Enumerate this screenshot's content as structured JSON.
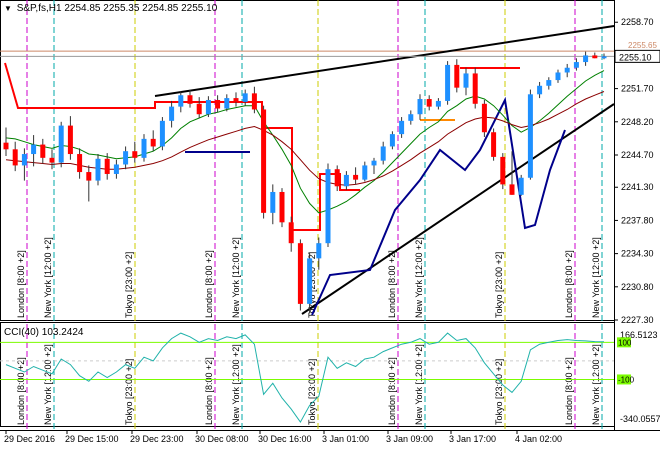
{
  "window": {
    "symbol_label": "S&P,fs,H1",
    "ohlc_label": "2254.85 2255.35 2254.85 2255.10",
    "collapse_icon": "triangle-down-icon"
  },
  "indicator": {
    "label": "CCI(40) 103.2424"
  },
  "price_axis": {
    "ticks": [
      "2258.70",
      "2255.10",
      "2251.70",
      "2248.20",
      "2244.70",
      "2241.30",
      "2237.80",
      "2234.30",
      "2230.80",
      "2227.30"
    ],
    "current_price": "2255.10",
    "hline_label": "2255.65"
  },
  "cci_axis": {
    "ticks": [
      "166.5123",
      "100",
      "-100",
      "-340.0557"
    ]
  },
  "time_axis": {
    "labels": [
      "29 Dec 2016",
      "29 Dec 15:00",
      "29 Dec 23:00",
      "30 Dec 08:00",
      "30 Dec 16:00",
      "3 Jan 01:00",
      "3 Jan 09:00",
      "3 Jan 17:00",
      "4 Jan 02:00"
    ]
  },
  "session_labels": [
    "London [8:00 +2]",
    "New York [12:00 +2]",
    "Tokyo [23:00 +2]",
    "London [8:00 +2]",
    "New York [12:00 +2]",
    "Tokyo [23:00 +2]",
    "London [8:00 +2]",
    "New York [12:00 +2]",
    "Tokyo [23:00 +2]",
    "London [8:00 +2]",
    "New York [12:00 +2]"
  ],
  "colors": {
    "bull": "#1e90ff",
    "bear": "#ff0000",
    "ma_fast": "#008000",
    "ma_slow": "#8b0000",
    "trend": "#000000",
    "navy": "#00008b",
    "cci": "#20b2aa",
    "level": "#7cfc00"
  },
  "chart_data": {
    "type": "candlestick",
    "symbol": "S&P,fs,H1",
    "indicator": "CCI(40)",
    "candles": [
      [
        2246.0,
        2247.6,
        2244.6,
        2245.3
      ],
      [
        2245.3,
        2246.1,
        2243.0,
        2243.6
      ],
      [
        2243.6,
        2245.4,
        2242.0,
        2244.8
      ],
      [
        2244.8,
        2246.8,
        2243.5,
        2245.8
      ],
      [
        2245.8,
        2246.4,
        2243.8,
        2244.4
      ],
      [
        2244.4,
        2245.3,
        2243.2,
        2243.9
      ],
      [
        2243.9,
        2248.2,
        2243.4,
        2247.8
      ],
      [
        2247.8,
        2248.8,
        2244.2,
        2244.8
      ],
      [
        2244.8,
        2245.4,
        2242.2,
        2242.9
      ],
      [
        2242.9,
        2243.6,
        2239.8,
        2242.0
      ],
      [
        2242.0,
        2244.8,
        2241.5,
        2244.3
      ],
      [
        2244.3,
        2244.9,
        2242.1,
        2242.7
      ],
      [
        2242.7,
        2244.2,
        2242.2,
        2243.7
      ],
      [
        2243.7,
        2245.6,
        2243.2,
        2245.1
      ],
      [
        2245.1,
        2246.1,
        2243.9,
        2244.4
      ],
      [
        2244.4,
        2246.9,
        2244.0,
        2246.4
      ],
      [
        2246.4,
        2247.3,
        2245.1,
        2245.6
      ],
      [
        2245.6,
        2248.7,
        2245.2,
        2248.3
      ],
      [
        2248.3,
        2250.4,
        2247.6,
        2249.8
      ],
      [
        2249.8,
        2251.4,
        2249.2,
        2251.0
      ],
      [
        2251.0,
        2251.6,
        2249.7,
        2250.1
      ],
      [
        2250.1,
        2250.8,
        2248.6,
        2249.0
      ],
      [
        2249.0,
        2250.9,
        2248.7,
        2250.5
      ],
      [
        2250.5,
        2251.0,
        2249.2,
        2249.6
      ],
      [
        2249.6,
        2251.1,
        2249.3,
        2250.7
      ],
      [
        2250.7,
        2251.3,
        2249.8,
        2250.3
      ],
      [
        2250.3,
        2251.6,
        2249.9,
        2251.2
      ],
      [
        2251.2,
        2251.9,
        2249.1,
        2249.5
      ],
      [
        2249.5,
        2249.9,
        2238.0,
        2238.6
      ],
      [
        2238.6,
        2241.6,
        2237.4,
        2240.8
      ],
      [
        2240.8,
        2241.2,
        2237.1,
        2237.6
      ],
      [
        2237.6,
        2238.2,
        2234.5,
        2235.4
      ],
      [
        2235.4,
        2235.8,
        2228.3,
        2229.0
      ],
      [
        2229.0,
        2234.4,
        2228.0,
        2233.8
      ],
      [
        2233.8,
        2236.0,
        2232.6,
        2235.4
      ],
      [
        2235.4,
        2243.8,
        2235.0,
        2243.2
      ],
      [
        2243.2,
        2243.6,
        2240.9,
        2241.4
      ],
      [
        2241.4,
        2243.0,
        2241.0,
        2242.6
      ],
      [
        2242.6,
        2243.4,
        2241.6,
        2242.1
      ],
      [
        2242.1,
        2244.0,
        2241.9,
        2243.6
      ],
      [
        2243.6,
        2244.4,
        2242.7,
        2244.1
      ],
      [
        2244.1,
        2246.1,
        2243.7,
        2245.6
      ],
      [
        2245.6,
        2247.2,
        2245.3,
        2246.9
      ],
      [
        2246.9,
        2248.7,
        2246.5,
        2248.3
      ],
      [
        2248.3,
        2249.4,
        2247.9,
        2249.0
      ],
      [
        2249.0,
        2251.1,
        2248.4,
        2250.6
      ],
      [
        2250.6,
        2251.0,
        2249.4,
        2249.8
      ],
      [
        2249.8,
        2250.7,
        2249.5,
        2250.4
      ],
      [
        2250.4,
        2254.6,
        2250.0,
        2254.2
      ],
      [
        2254.2,
        2254.8,
        2251.3,
        2251.8
      ],
      [
        2251.8,
        2253.9,
        2251.0,
        2253.3
      ],
      [
        2253.3,
        2253.9,
        2249.6,
        2250.1
      ],
      [
        2250.1,
        2250.5,
        2246.6,
        2247.1
      ],
      [
        2247.1,
        2247.5,
        2244.1,
        2244.5
      ],
      [
        2244.5,
        2244.9,
        2241.1,
        2241.6
      ],
      [
        2241.6,
        2245.1,
        2240.5,
        2240.5
      ],
      [
        2240.5,
        2242.6,
        2240.4,
        2242.3
      ],
      [
        2242.3,
        2251.6,
        2242.1,
        2251.1
      ],
      [
        2251.1,
        2252.4,
        2250.7,
        2252.0
      ],
      [
        2252.0,
        2252.9,
        2251.6,
        2252.6
      ],
      [
        2252.6,
        2253.7,
        2252.3,
        2253.4
      ],
      [
        2253.4,
        2254.3,
        2252.9,
        2253.9
      ],
      [
        2253.9,
        2254.9,
        2253.6,
        2254.5
      ],
      [
        2254.5,
        2255.6,
        2254.1,
        2255.2
      ],
      [
        2255.2,
        2255.5,
        2254.9,
        2254.9
      ],
      [
        2254.9,
        2255.4,
        2254.8,
        2255.1
      ]
    ],
    "ma_fast": [
      2246.5,
      2246.4,
      2246.1,
      2245.8,
      2245.6,
      2245.4,
      2245.7,
      2245.6,
      2245.3,
      2244.8,
      2244.7,
      2244.5,
      2244.3,
      2244.4,
      2244.5,
      2244.8,
      2245.1,
      2245.7,
      2246.5,
      2247.5,
      2248.2,
      2248.6,
      2249.0,
      2249.2,
      2249.5,
      2249.7,
      2249.9,
      2249.9,
      2248.2,
      2246.8,
      2245.3,
      2243.6,
      2241.2,
      2239.6,
      2238.6,
      2238.9,
      2239.3,
      2239.8,
      2240.5,
      2241.3,
      2242.0,
      2242.9,
      2243.9,
      2244.9,
      2245.9,
      2246.9,
      2247.6,
      2248.2,
      2249.3,
      2249.9,
      2250.6,
      2250.9,
      2250.6,
      2249.9,
      2248.9,
      2247.8,
      2247.1,
      2247.6,
      2248.3,
      2249.1,
      2250.0,
      2250.9,
      2251.7,
      2252.5,
      2253.1,
      2253.6
    ],
    "ma_slow": [
      2244.2,
      2244.1,
      2244.0,
      2243.9,
      2243.8,
      2243.7,
      2243.8,
      2243.8,
      2243.6,
      2243.4,
      2243.3,
      2243.2,
      2243.2,
      2243.3,
      2243.4,
      2243.6,
      2243.8,
      2244.1,
      2244.5,
      2245.0,
      2245.5,
      2245.9,
      2246.3,
      2246.6,
      2246.9,
      2247.2,
      2247.5,
      2247.7,
      2247.3,
      2246.8,
      2246.1,
      2245.3,
      2244.2,
      2243.1,
      2242.2,
      2241.8,
      2241.6,
      2241.5,
      2241.6,
      2241.8,
      2242.1,
      2242.5,
      2243.0,
      2243.6,
      2244.2,
      2244.9,
      2245.5,
      2246.1,
      2246.9,
      2247.5,
      2248.1,
      2248.5,
      2248.7,
      2248.6,
      2248.3,
      2247.9,
      2247.6,
      2247.8,
      2248.1,
      2248.5,
      2249.0,
      2249.5,
      2250.1,
      2250.6,
      2251.0,
      2251.4
    ],
    "cci": [
      -20,
      -40,
      -60,
      -30,
      -50,
      -70,
      10,
      -20,
      -80,
      -110,
      -60,
      -90,
      -60,
      -20,
      -40,
      20,
      0,
      70,
      120,
      150,
      130,
      100,
      120,
      110,
      130,
      120,
      140,
      90,
      -180,
      -120,
      -200,
      -260,
      -330,
      -240,
      -190,
      20,
      -40,
      -10,
      -30,
      10,
      20,
      50,
      70,
      90,
      100,
      120,
      90,
      100,
      150,
      110,
      120,
      70,
      -10,
      -70,
      -130,
      -170,
      -110,
      60,
      90,
      100,
      110,
      115,
      110,
      108,
      104,
      103.2424
    ],
    "ylim": [
      2227.3,
      2260.2
    ],
    "cci_ylim": [
      -340.0557,
      166.5123
    ],
    "cci_levels": [
      100,
      -100
    ],
    "hline": 2255.65
  }
}
